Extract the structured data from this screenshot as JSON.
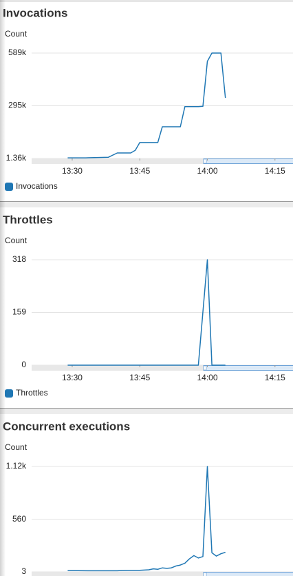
{
  "chart_data": [
    {
      "type": "line",
      "title": "Invocations",
      "y_label": "Count",
      "x": [
        809,
        813,
        818,
        820,
        823,
        824,
        825,
        829,
        830,
        834,
        835,
        838,
        839,
        840,
        841,
        843,
        844
      ],
      "series": [
        {
          "name": "Invocations",
          "color": "#1f77b4",
          "values": [
            5000,
            5000,
            8000,
            32000,
            32000,
            47000,
            90000,
            90000,
            178000,
            178000,
            290000,
            290000,
            292000,
            543000,
            589000,
            589000,
            339000
          ]
        }
      ],
      "xlim": [
        801,
        859
      ],
      "xticks": [
        {
          "value": 810,
          "label": "13:30"
        },
        {
          "value": 825,
          "label": "13:45"
        },
        {
          "value": 840,
          "label": "14:00"
        },
        {
          "value": 855,
          "label": "14:15"
        }
      ],
      "ylim": [
        1360,
        589000
      ],
      "yticks": [
        {
          "value": 1360,
          "label": "1.36k"
        },
        {
          "value": 295000,
          "label": "295k"
        },
        {
          "value": 589000,
          "label": "589k"
        }
      ],
      "grid": true
    },
    {
      "type": "line",
      "title": "Throttles",
      "y_label": "Count",
      "x": [
        809,
        838,
        840,
        841,
        844
      ],
      "series": [
        {
          "name": "Throttles",
          "color": "#1f77b4",
          "values": [
            0,
            0,
            318,
            0,
            0
          ]
        }
      ],
      "xlim": [
        801,
        859
      ],
      "xticks": [
        {
          "value": 810,
          "label": "13:30"
        },
        {
          "value": 825,
          "label": "13:45"
        },
        {
          "value": 840,
          "label": "14:00"
        },
        {
          "value": 855,
          "label": "14:15"
        }
      ],
      "ylim": [
        0,
        318
      ],
      "yticks": [
        0,
        159,
        318
      ],
      "grid": true
    },
    {
      "type": "line",
      "title": "Concurrent executions",
      "y_label": "Count",
      "x": [
        809,
        815,
        820,
        822,
        825,
        827,
        828,
        829,
        830,
        831,
        832,
        833,
        834,
        835,
        836,
        837,
        838,
        839,
        840,
        841,
        842,
        843,
        844
      ],
      "series": [
        {
          "color": "#1f77b4",
          "values": [
            17,
            15,
            15,
            20,
            20,
            25,
            35,
            30,
            45,
            40,
            45,
            65,
            75,
            95,
            140,
            175,
            150,
            165,
            1120,
            205,
            170,
            195,
            210
          ]
        }
      ],
      "xlim": [
        801,
        859
      ],
      "ylim": [
        3,
        1120
      ],
      "yticks": [
        3,
        560,
        {
          "value": 1120,
          "label": "1.12k"
        }
      ],
      "grid": true
    }
  ]
}
